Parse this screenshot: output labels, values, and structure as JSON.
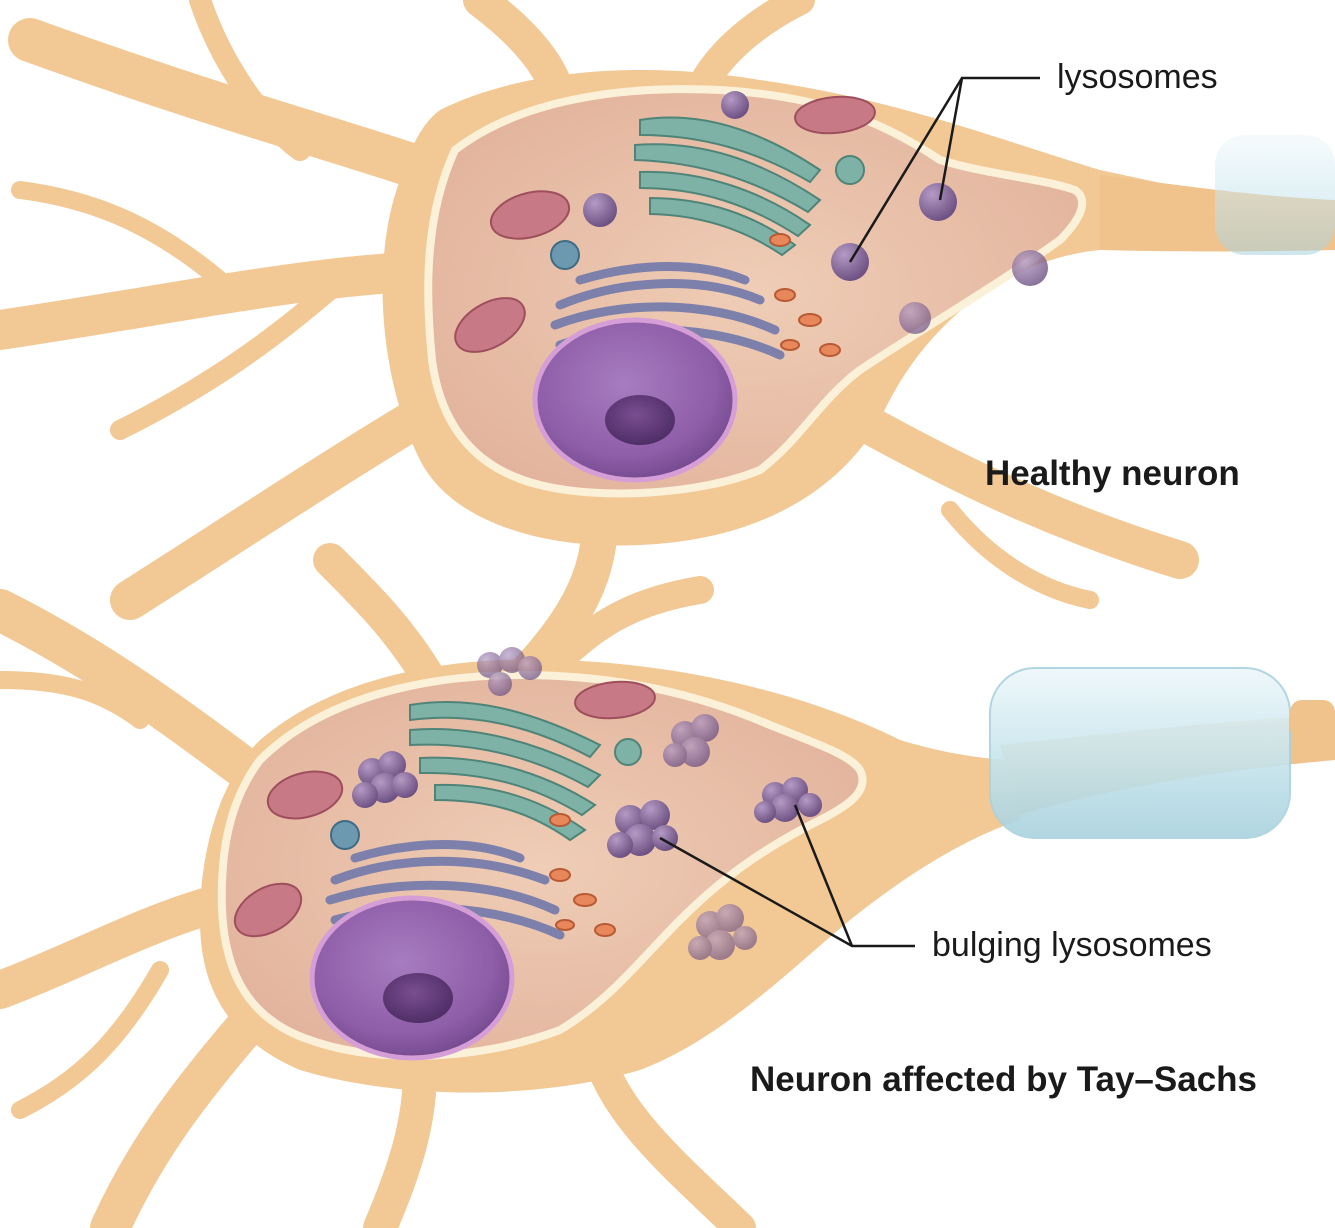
{
  "labels": {
    "lysosomes": "lysosomes",
    "bulging_lysosomes": "bulging lysosomes",
    "healthy_caption": "Healthy neuron",
    "affected_caption": "Neuron affected by Tay–Sachs"
  },
  "colors": {
    "cytoplasm": "#f2c894",
    "cell_interior": "#ecc6b0",
    "membrane_edge": "#fbf0d8",
    "nucleus": "#8e5ea8",
    "nucleolus": "#5e3a78",
    "lysosome": "#8a6e9e",
    "golgi": "#7fb2a6",
    "er": "#7e80ac",
    "mitochondria": "#c77a86",
    "myelin": "#d6ecf2",
    "leader_line": "#1a1a1a"
  }
}
